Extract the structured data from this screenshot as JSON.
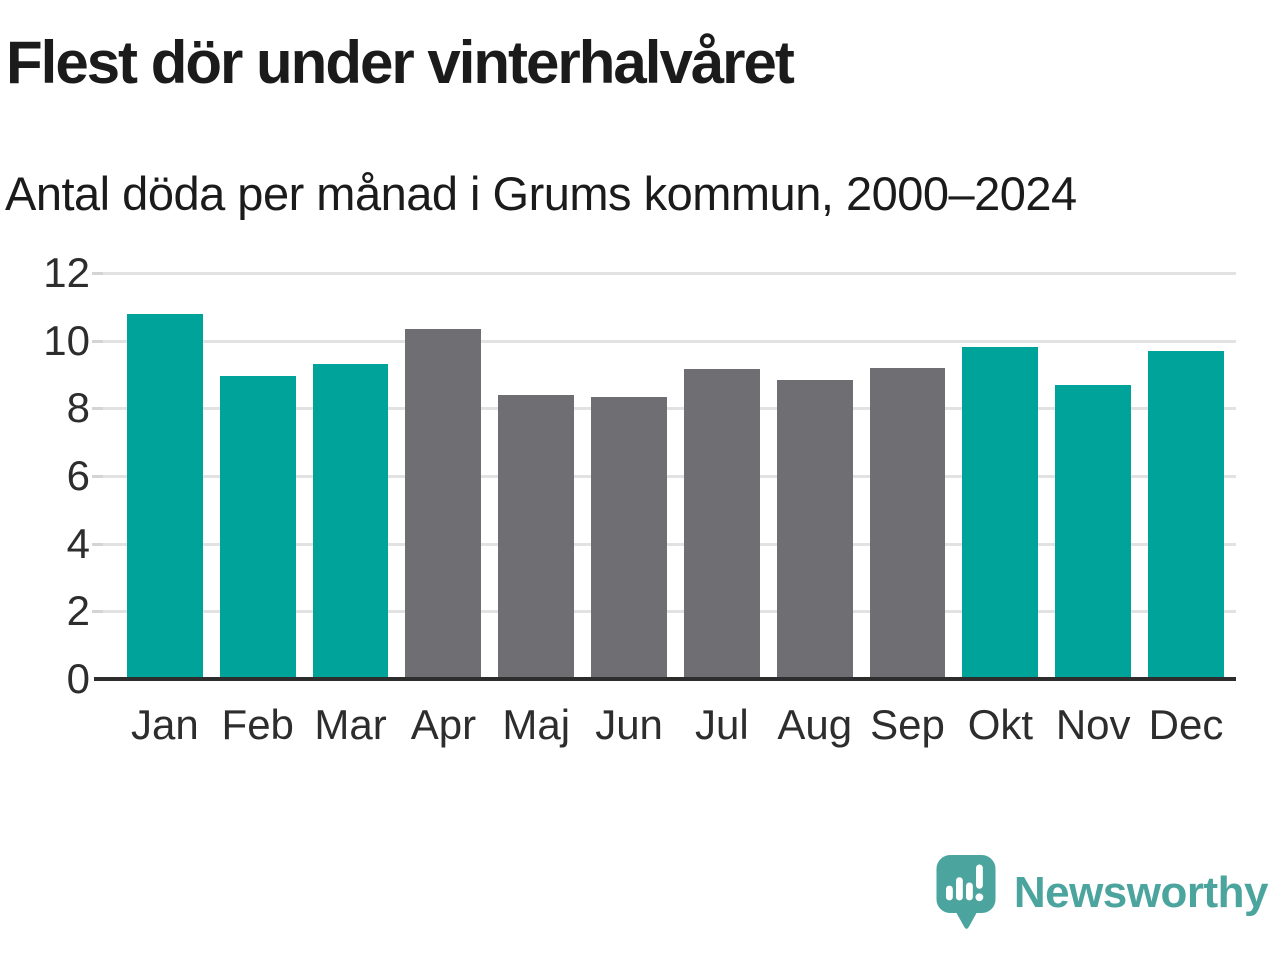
{
  "header": {
    "title": "Flest dör under vinterhalvåret",
    "subtitle": "Antal döda per månad i Grums kommun, 2000–2024"
  },
  "branding": {
    "logo_text": "Newsworthy",
    "logo_icon": "newsworthy-speech-bubble-chart-icon",
    "logo_color": "#4ba49d"
  },
  "colors": {
    "highlight_winter": "#00a39a",
    "neutral_summer": "#6f6f73",
    "gridline": "#e2e2e2",
    "axis": "#2d2d2d",
    "tick_label": "#2d2d2d",
    "text": "#1b1b1b",
    "background": "#ffffff"
  },
  "chart_data": {
    "type": "bar",
    "title": "Flest dör under vinterhalvåret",
    "subtitle": "Antal döda per månad i Grums kommun, 2000–2024",
    "categories": [
      "Jan",
      "Feb",
      "Mar",
      "Apr",
      "Maj",
      "Jun",
      "Jul",
      "Aug",
      "Sep",
      "Okt",
      "Nov",
      "Dec"
    ],
    "values": [
      10.8,
      8.95,
      9.3,
      10.35,
      8.4,
      8.35,
      9.15,
      8.85,
      9.2,
      9.8,
      8.7,
      9.7
    ],
    "highlighted": [
      true,
      true,
      true,
      false,
      false,
      false,
      false,
      false,
      false,
      true,
      true,
      true
    ],
    "highlight_meaning": "winter half-year months (teal), summer months gray",
    "xlabel": "",
    "ylabel": "",
    "ylim": [
      0,
      12
    ],
    "yticks": [
      0,
      2,
      4,
      6,
      8,
      10,
      12
    ],
    "grid": "horizontal-behind-bars",
    "legend": "none"
  }
}
